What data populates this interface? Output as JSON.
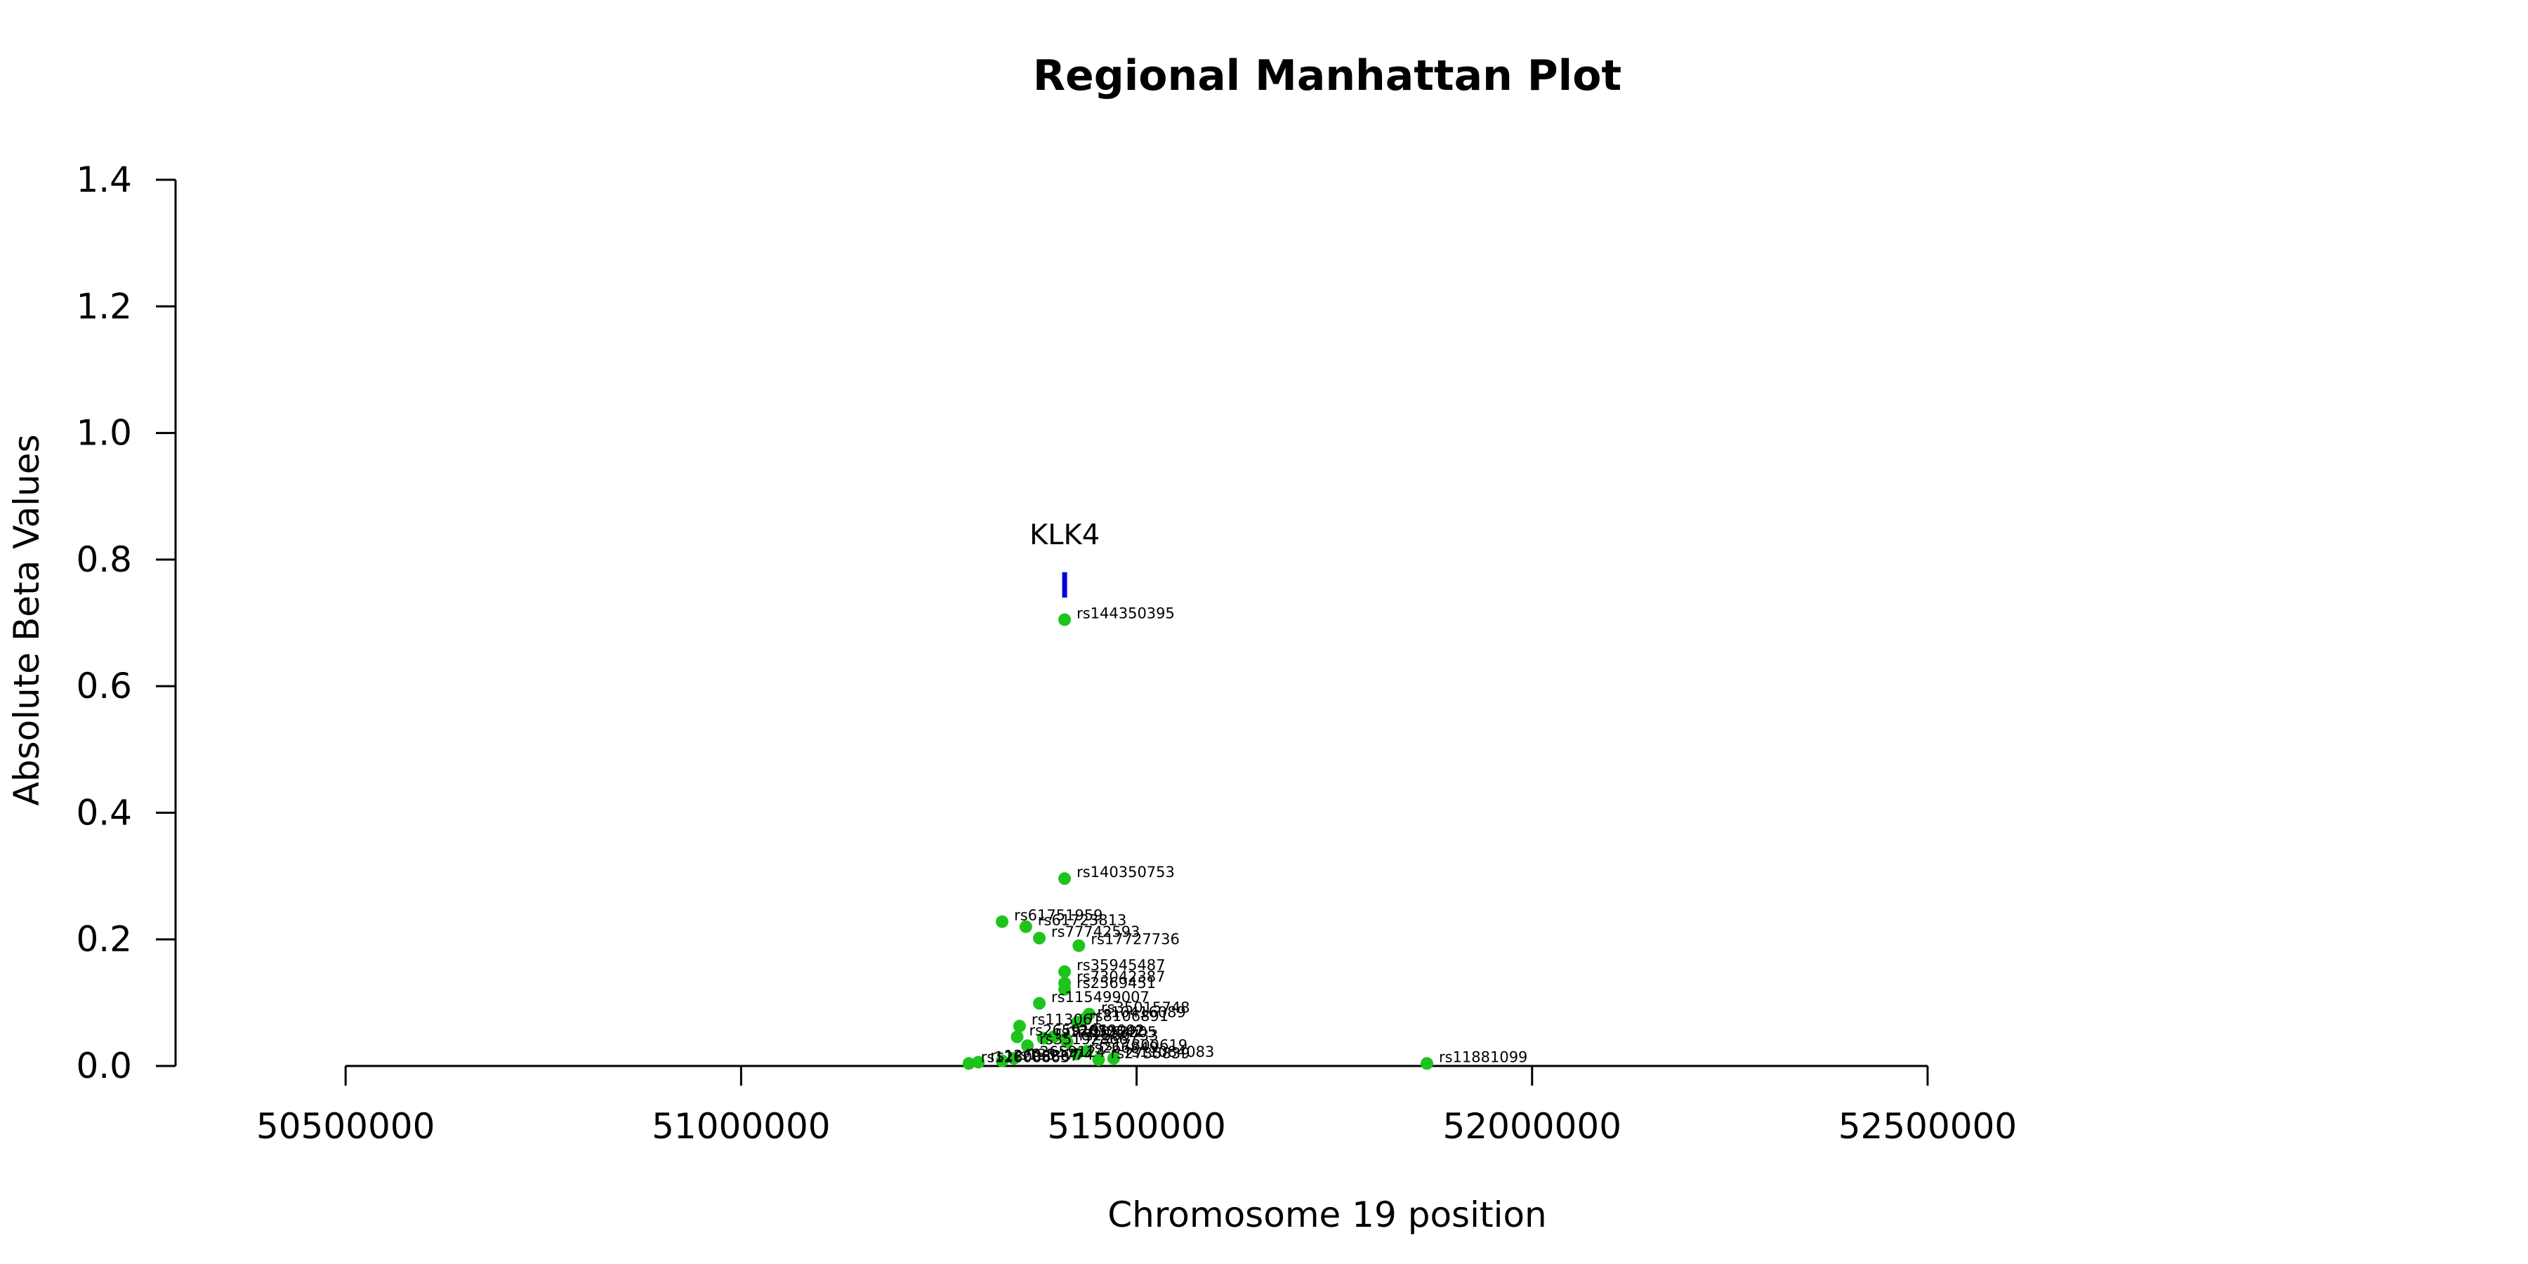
{
  "chart_data": {
    "type": "scatter",
    "title": "Regional Manhattan Plot",
    "xlabel": "Chromosome 19 position",
    "ylabel": "Absolute Beta Values",
    "xlim": [
      50285000,
      52785000
    ],
    "ylim": [
      0,
      1.4
    ],
    "x_ticks": [
      50500000,
      51000000,
      51500000,
      52000000,
      52500000
    ],
    "x_tick_labels": [
      "50500000",
      "51000000",
      "51500000",
      "52000000",
      "52500000"
    ],
    "y_ticks": [
      0.0,
      0.2,
      0.4,
      0.6,
      0.8,
      1.0,
      1.2,
      1.4
    ],
    "y_tick_labels": [
      "0.0",
      "0.2",
      "0.4",
      "0.6",
      "0.8",
      "1.0",
      "1.2",
      "1.4"
    ],
    "grid": false,
    "point_color": "#1ec41e",
    "gene": {
      "name": "KLK4",
      "x": 51409000,
      "y_range": [
        0.74,
        0.78
      ],
      "color": "#0000dd"
    },
    "points": [
      {
        "x": 51409000,
        "y": 0.705,
        "label": "rs144350395"
      },
      {
        "x": 51409000,
        "y": 0.296,
        "label": "rs140350753"
      },
      {
        "x": 51330000,
        "y": 0.228,
        "label": "rs61751959"
      },
      {
        "x": 51360000,
        "y": 0.22,
        "label": "rs61723813"
      },
      {
        "x": 51377000,
        "y": 0.202,
        "label": "rs77742593"
      },
      {
        "x": 51427000,
        "y": 0.19,
        "label": "rs17727736"
      },
      {
        "x": 51409000,
        "y": 0.149,
        "label": "rs35945487"
      },
      {
        "x": 51409000,
        "y": 0.131,
        "label": "rs73042387"
      },
      {
        "x": 51409000,
        "y": 0.121,
        "label": "rs2569451"
      },
      {
        "x": 51377000,
        "y": 0.099,
        "label": "rs115499007"
      },
      {
        "x": 51440000,
        "y": 0.082,
        "label": "rs35015748"
      },
      {
        "x": 51435000,
        "y": 0.075,
        "label": "rs10416089"
      },
      {
        "x": 51425000,
        "y": 0.069,
        "label": "rs8106891"
      },
      {
        "x": 51352000,
        "y": 0.063,
        "label": "rs113061"
      },
      {
        "x": 51349000,
        "y": 0.046,
        "label": "rs2659101"
      },
      {
        "x": 51382000,
        "y": 0.044,
        "label": "rs17632542"
      },
      {
        "x": 51395000,
        "y": 0.046,
        "label": "rs2659092"
      },
      {
        "x": 51410000,
        "y": 0.043,
        "label": "rs1058205"
      },
      {
        "x": 51412000,
        "y": 0.038,
        "label": "rs2569733"
      },
      {
        "x": 51362000,
        "y": 0.032,
        "label": "rs35192866"
      },
      {
        "x": 51437000,
        "y": 0.023,
        "label": "rs17800619"
      },
      {
        "x": 51424000,
        "y": 0.019,
        "label": "rs266849"
      },
      {
        "x": 51471000,
        "y": 0.012,
        "label": "rs11084083"
      },
      {
        "x": 51452000,
        "y": 0.01,
        "label": "rs2735839"
      },
      {
        "x": 51345000,
        "y": 0.012,
        "label": "rs2659124"
      },
      {
        "x": 51330000,
        "y": 0.008,
        "label": "rs1354774"
      },
      {
        "x": 51300000,
        "y": 0.006,
        "label": "rs12608867"
      },
      {
        "x": 51288000,
        "y": 0.004,
        "label": "rs12608863"
      },
      {
        "x": 51867000,
        "y": 0.004,
        "label": "rs11881099"
      }
    ]
  }
}
